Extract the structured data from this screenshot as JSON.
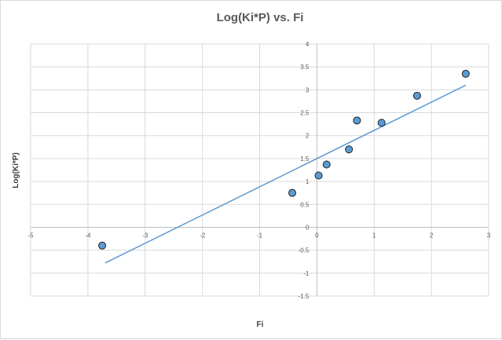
{
  "chart_data": {
    "type": "scatter",
    "title": "Log(Ki*P) vs. Fi",
    "xlabel": "Fi",
    "ylabel": "Log(Ki*P)",
    "xlim": [
      -5,
      3
    ],
    "ylim": [
      -1.5,
      4
    ],
    "xticks": [
      -5,
      -4,
      -3,
      -2,
      -1,
      0,
      1,
      2,
      3
    ],
    "yticks": [
      -1.5,
      -1,
      -0.5,
      0,
      0.5,
      1,
      1.5,
      2,
      2.5,
      3,
      3.5,
      4
    ],
    "grid": true,
    "legend": "none",
    "series": [
      {
        "marker": "circle",
        "points": [
          {
            "x": -3.75,
            "y": -0.4
          },
          {
            "x": -0.43,
            "y": 0.75
          },
          {
            "x": 0.03,
            "y": 1.13
          },
          {
            "x": 0.17,
            "y": 1.37
          },
          {
            "x": 0.56,
            "y": 1.7
          },
          {
            "x": 0.7,
            "y": 2.33
          },
          {
            "x": 1.13,
            "y": 2.28
          },
          {
            "x": 1.75,
            "y": 2.87
          },
          {
            "x": 2.6,
            "y": 3.35
          }
        ]
      }
    ],
    "trendline": {
      "x": [
        -3.7,
        2.6
      ],
      "y": [
        -0.78,
        3.1
      ]
    },
    "colors": {
      "marker_fill": "#5B9BD5",
      "marker_stroke": "#1F1F1F",
      "trendline": "#5B9BD5",
      "grid": "#d9d9d9",
      "axis": "#bfbfbf"
    }
  }
}
